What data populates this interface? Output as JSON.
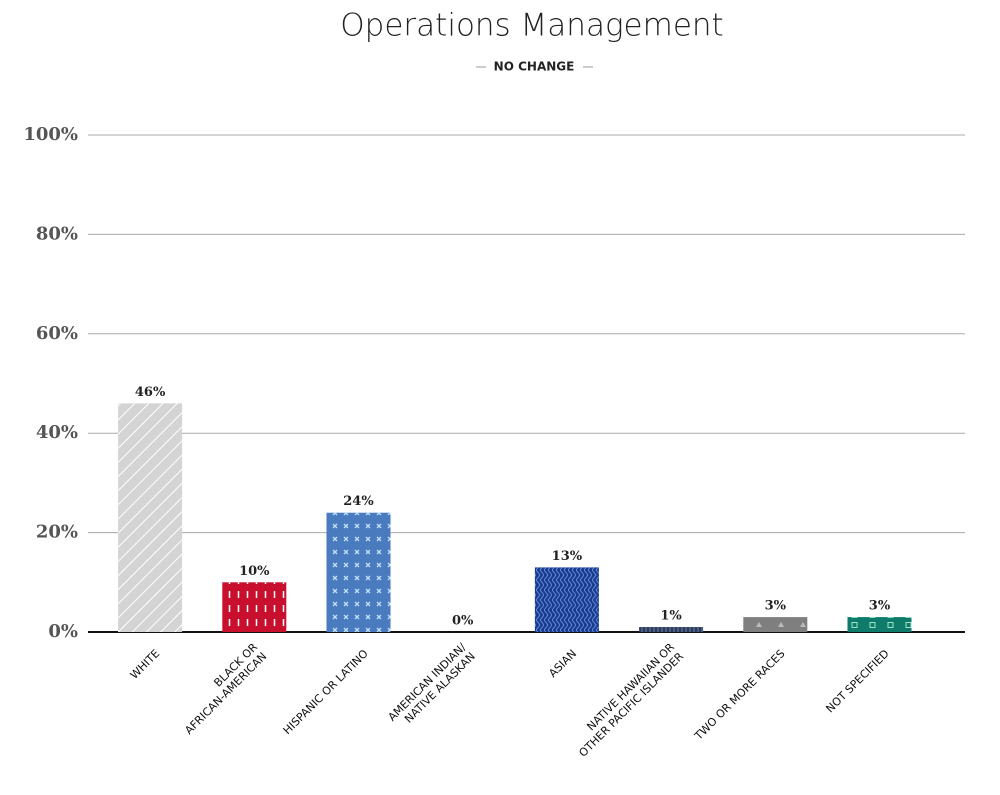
{
  "chart_data": {
    "type": "bar",
    "title": "Operations Management",
    "subtitle": "NO CHANGE",
    "categories": [
      "WHITE",
      "BLACK OR\nAFRICAN-AMERICAN",
      "HISPANIC OR LATINO",
      "AMERICAN INDIAN/\nNATIVE ALASKAN",
      "ASIAN",
      "NATIVE HAWAIIAN OR\nOTHER PACIFIC ISLANDER",
      "TWO OR MORE RACES",
      "NOT SPECIFIED"
    ],
    "values": [
      46,
      10,
      24,
      0,
      13,
      1,
      3,
      3
    ],
    "value_labels": [
      "46%",
      "10%",
      "24%",
      "0%",
      "13%",
      "1%",
      "3%",
      "3%"
    ],
    "colors": [
      "#d4d4d4",
      "#c8102e",
      "#4a7bbf",
      "#555555",
      "#1c3b8c",
      "#2a3b5c",
      "#7f7f80",
      "#0f7b6b"
    ],
    "ylim": [
      0,
      100
    ],
    "yticks": [
      {
        "value": 0,
        "label": "0%"
      },
      {
        "value": 20,
        "label": "20%"
      },
      {
        "value": 40,
        "label": "40%"
      },
      {
        "value": 60,
        "label": "60%"
      },
      {
        "value": 80,
        "label": "80%"
      },
      {
        "value": 100,
        "label": "100%"
      }
    ],
    "grid": true
  }
}
